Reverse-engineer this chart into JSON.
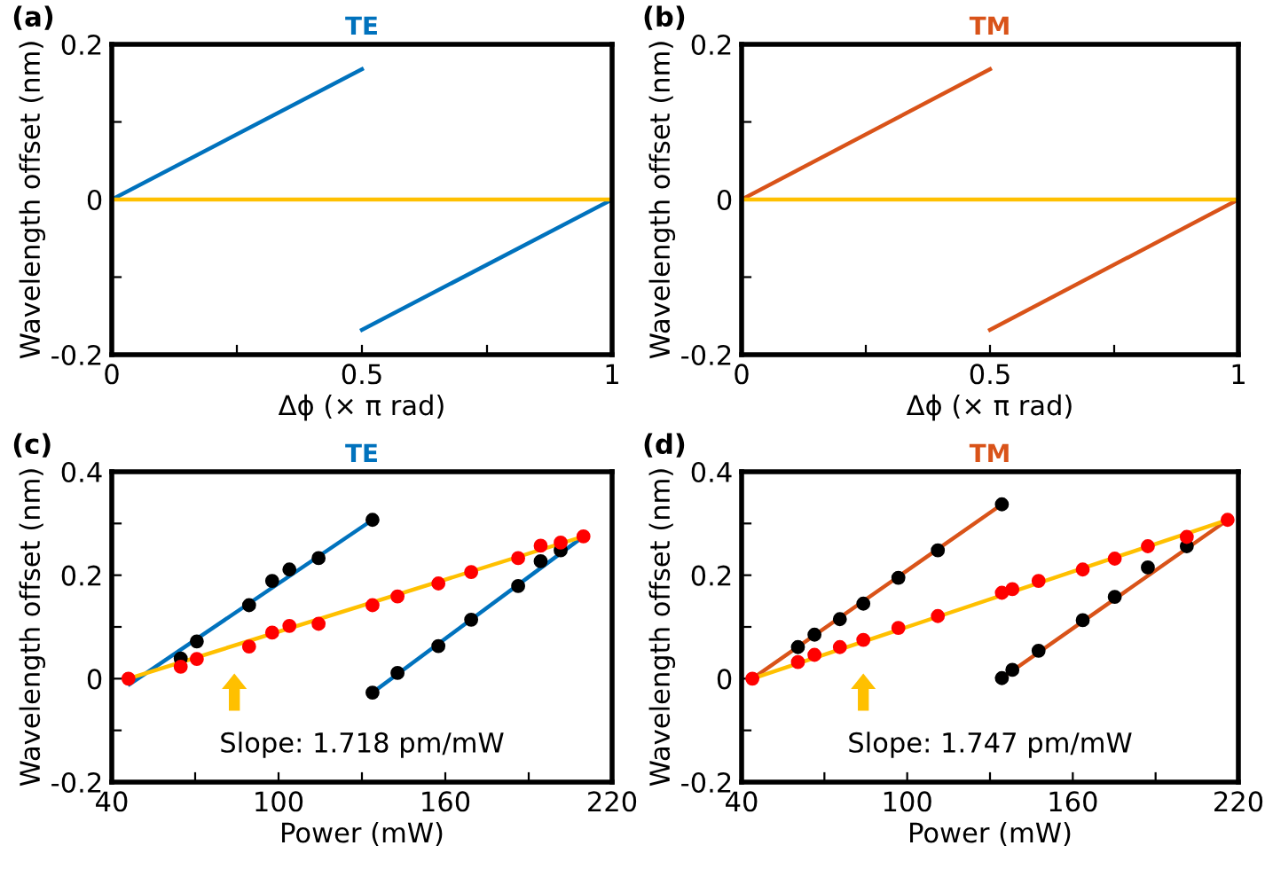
{
  "chart_data": [
    {
      "type": "line",
      "title": "TE",
      "xlabel": "Δϕ (× π rad)",
      "ylabel": "Wavelength offset (nm)",
      "annotations": [
        "(a)"
      ],
      "xlim": [
        0,
        1
      ],
      "xticks": [
        0,
        {
          "value": 0.25,
          "label": null
        },
        0.5,
        {
          "value": 0.75,
          "label": null
        },
        1
      ],
      "ylim": [
        -0.2,
        0.2
      ],
      "yticks": [
        -0.2,
        {
          "value": -0.1,
          "label": null
        },
        0,
        {
          "value": 0.1,
          "label": null
        },
        0.2
      ],
      "series": [
        {
          "type": "line",
          "color": "#0072bd",
          "x": [
            0,
            0.5
          ],
          "values": [
            0,
            0.168
          ]
        },
        {
          "type": "line",
          "color": "#0072bd",
          "x": [
            0.5,
            1
          ],
          "values": [
            -0.168,
            0
          ]
        },
        {
          "type": "line",
          "color": "#ffc000",
          "x": [
            0,
            1
          ],
          "values": [
            0,
            0
          ]
        }
      ]
    },
    {
      "type": "line",
      "title": "TM",
      "xlabel": "Δϕ (× π rad)",
      "ylabel": "Wavelength offset (nm)",
      "annotations": [
        "(b)"
      ],
      "xlim": [
        0,
        1
      ],
      "xticks": [
        0,
        {
          "value": 0.25,
          "label": null
        },
        0.5,
        {
          "value": 0.75,
          "label": null
        },
        1
      ],
      "ylim": [
        -0.2,
        0.2
      ],
      "yticks": [
        -0.2,
        {
          "value": -0.1,
          "label": null
        },
        0,
        {
          "value": 0.1,
          "label": null
        },
        0.2
      ],
      "series": [
        {
          "type": "line",
          "color": "#d95319",
          "x": [
            0,
            0.5
          ],
          "values": [
            0,
            0.168
          ]
        },
        {
          "type": "line",
          "color": "#d95319",
          "x": [
            0.5,
            1
          ],
          "values": [
            -0.168,
            0
          ]
        },
        {
          "type": "line",
          "color": "#ffc000",
          "x": [
            0,
            1
          ],
          "values": [
            0,
            0
          ]
        }
      ]
    },
    {
      "type": "scatter",
      "title": "TE",
      "xlabel": "Power (mW)",
      "ylabel": "Wavelength offset (nm)",
      "annotations": [
        "(c)",
        "Slope: 1.718 pm/mW"
      ],
      "xlim": [
        40,
        220
      ],
      "xticks": [
        40,
        {
          "value": 70,
          "label": null
        },
        100,
        {
          "value": 130,
          "label": null
        },
        160,
        {
          "value": 190,
          "label": null
        },
        220
      ],
      "ylim": [
        -0.2,
        0.4
      ],
      "yticks": [
        -0.2,
        {
          "value": -0.1,
          "label": null
        },
        0,
        {
          "value": 0.1,
          "label": null
        },
        0.2,
        {
          "value": 0.3,
          "label": null
        },
        0.4
      ],
      "series": [
        {
          "type": "line",
          "color": "#0072bd",
          "x": [
            46.4,
            133.8
          ],
          "values": [
            -0.011,
            0.307
          ]
        },
        {
          "type": "line",
          "color": "#0072bd",
          "x": [
            133.8,
            209.7
          ],
          "values": [
            -0.027,
            0.275
          ]
        },
        {
          "type": "line",
          "color": "#ffc000",
          "x": [
            46,
            209.7
          ],
          "values": [
            0,
            0.275
          ]
        },
        {
          "type": "scatter",
          "color": "#000000",
          "marker": "circle",
          "x": [
            64.8,
            70.6,
            89.4,
            97.7,
            103.9,
            114.4,
            133.8
          ],
          "values": [
            0.039,
            0.072,
            0.142,
            0.189,
            0.211,
            0.233,
            0.307
          ]
        },
        {
          "type": "scatter",
          "color": "#000000",
          "marker": "circle",
          "x": [
            133.8,
            142.8,
            157.5,
            169.3,
            186.2,
            194.3,
            201.5
          ],
          "values": [
            -0.027,
            0.011,
            0.063,
            0.114,
            0.179,
            0.227,
            0.248
          ]
        },
        {
          "type": "scatter",
          "color": "#ff0000",
          "marker": "circle",
          "x": [
            46,
            64.8,
            70.6,
            89.4,
            97.7,
            103.9,
            114.4,
            133.8,
            142.8,
            157.5,
            169.3,
            186.2,
            194.3,
            201.5,
            209.7
          ],
          "values": [
            0,
            0.023,
            0.038,
            0.062,
            0.089,
            0.102,
            0.106,
            0.142,
            0.159,
            0.184,
            0.206,
            0.233,
            0.257,
            0.263,
            0.275
          ]
        }
      ]
    },
    {
      "type": "scatter",
      "title": "TM",
      "xlabel": "Power (mW)",
      "ylabel": "Wavelength offset (nm)",
      "annotations": [
        "(d)",
        "Slope: 1.747 pm/mW"
      ],
      "xlim": [
        40,
        220
      ],
      "xticks": [
        40,
        {
          "value": 70,
          "label": null
        },
        100,
        {
          "value": 130,
          "label": null
        },
        160,
        {
          "value": 190,
          "label": null
        },
        220
      ],
      "ylim": [
        -0.2,
        0.4
      ],
      "yticks": [
        -0.2,
        {
          "value": -0.1,
          "label": null
        },
        0,
        {
          "value": 0.1,
          "label": null
        },
        0.2,
        {
          "value": 0.3,
          "label": null
        },
        0.4
      ],
      "series": [
        {
          "type": "line",
          "color": "#d95319",
          "x": [
            43.9,
            134.3
          ],
          "values": [
            0,
            0.337
          ]
        },
        {
          "type": "line",
          "color": "#d95319",
          "x": [
            134.3,
            216.1
          ],
          "values": [
            0.001,
            0.307
          ]
        },
        {
          "type": "line",
          "color": "#ffc000",
          "x": [
            43.9,
            216.1
          ],
          "values": [
            0,
            0.307
          ]
        },
        {
          "type": "scatter",
          "color": "#000000",
          "marker": "circle",
          "x": [
            60.4,
            66.4,
            75.6,
            84.1,
            96.8,
            111.1,
            134.3
          ],
          "values": [
            0.061,
            0.085,
            0.115,
            0.145,
            0.195,
            0.248,
            0.337
          ]
        },
        {
          "type": "scatter",
          "color": "#000000",
          "marker": "circle",
          "x": [
            134.3,
            138.1,
            147.6,
            163.6,
            175.2,
            187.2,
            201.3
          ],
          "values": [
            0.001,
            0.017,
            0.054,
            0.113,
            0.158,
            0.215,
            0.256
          ]
        },
        {
          "type": "scatter",
          "color": "#ff0000",
          "marker": "circle",
          "x": [
            43.9,
            60.4,
            66.4,
            75.6,
            84.1,
            96.8,
            111.1,
            134.3,
            138.1,
            147.6,
            163.6,
            175.2,
            187.2,
            201.3,
            216.1
          ],
          "values": [
            0,
            0.032,
            0.046,
            0.061,
            0.075,
            0.098,
            0.121,
            0.166,
            0.173,
            0.189,
            0.211,
            0.232,
            0.256,
            0.274,
            0.307
          ]
        }
      ]
    }
  ]
}
